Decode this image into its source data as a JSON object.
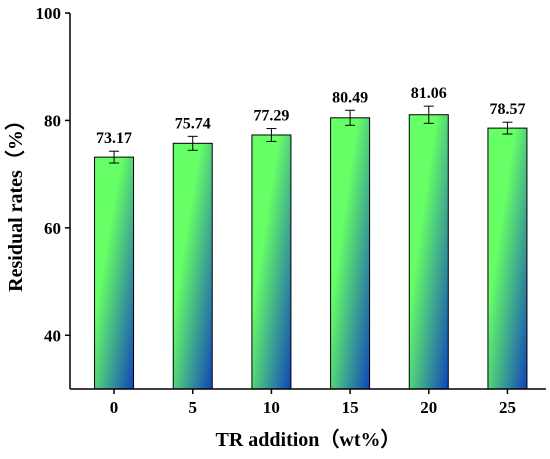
{
  "chart_data": {
    "type": "bar",
    "xlabel": "TR addition（wt%）",
    "ylabel": "Residual rates（%）",
    "categories": [
      "0",
      "5",
      "10",
      "15",
      "20",
      "25"
    ],
    "values": [
      73.17,
      75.74,
      77.29,
      80.49,
      81.06,
      78.57
    ],
    "value_labels": [
      "73.17",
      "75.74",
      "77.29",
      "80.49",
      "81.06",
      "78.57"
    ],
    "errors": [
      1.1,
      1.3,
      1.2,
      1.4,
      1.6,
      1.1
    ],
    "ylim": [
      30,
      100
    ],
    "yticks": [
      40,
      60,
      80,
      100
    ],
    "grid": false,
    "bar_gradient": [
      "#66ff66",
      "#1144bb"
    ]
  }
}
